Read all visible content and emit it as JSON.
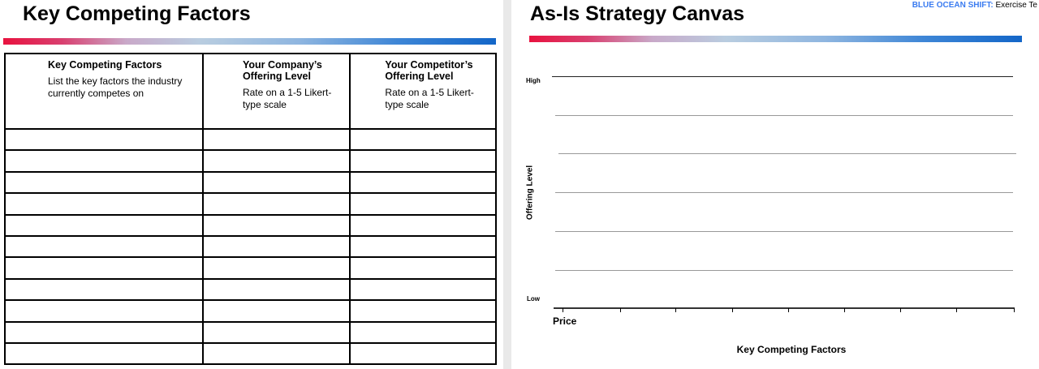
{
  "left": {
    "title": "Key Competing Factors",
    "columns": [
      {
        "heading": "Key Competing Factors",
        "description": "List the key factors the industry currently competes on"
      },
      {
        "heading": "Your Company’s Offering Level",
        "description": "Rate on a 1-5 Likert-type scale"
      },
      {
        "heading": "Your Competitor’s Offering Level",
        "description": "Rate on a 1-5 Likert-type scale"
      }
    ],
    "empty_rows": 11
  },
  "right": {
    "header_brand": "BLUE OCEAN SHIFT:",
    "header_text": "Exercise Te",
    "title": "As-Is Strategy Canvas",
    "y_axis_label": "Offering Level",
    "y_high": "High",
    "y_low": "Low",
    "first_factor": "Price",
    "x_axis_label": "Key Competing Factors",
    "brand_color": "#3a7bf0"
  }
}
